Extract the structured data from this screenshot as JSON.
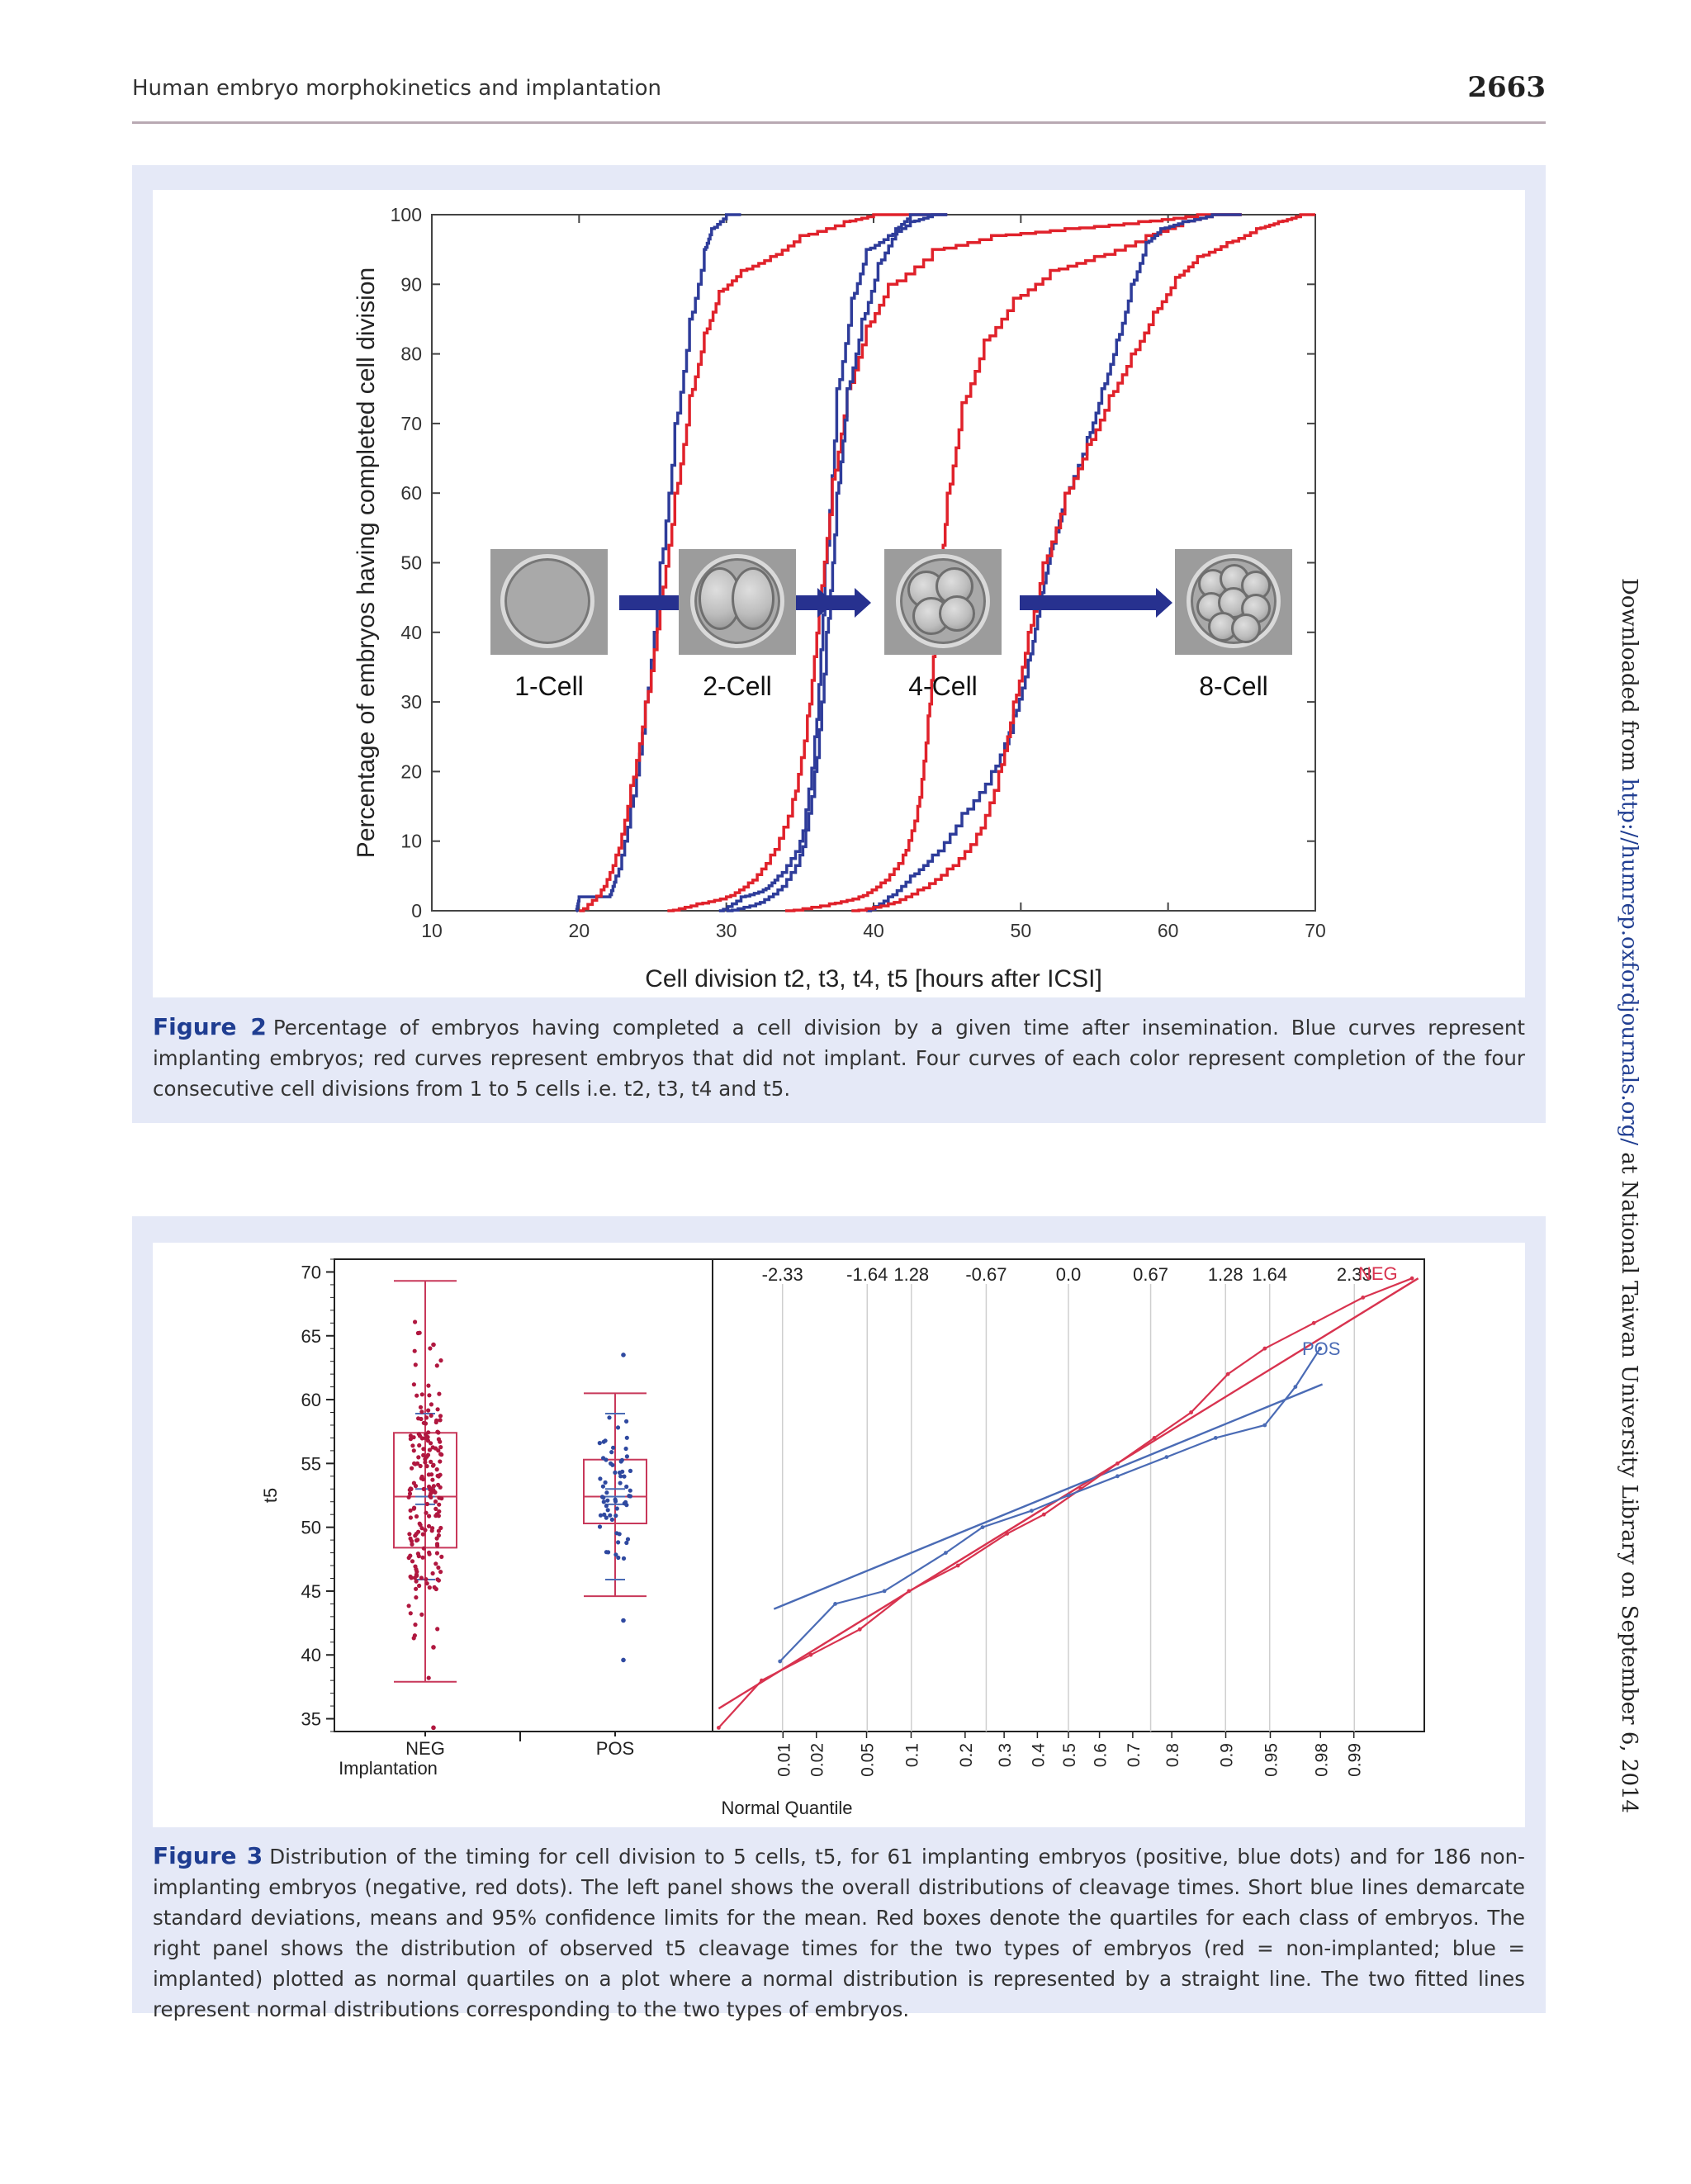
{
  "header": {
    "title": "Human embryo morphokinetics and implantation",
    "page_number": "2663"
  },
  "side_note": {
    "prefix": "Downloaded from ",
    "link": "http://humrep.oxfordjournals.org/",
    "suffix": " at National Taiwan University Library on September 6, 2014"
  },
  "figure2": {
    "label": "Figure 2",
    "caption": "Percentage of embryos having completed a cell division by a given time after insemination. Blue curves represent implanting embryos; red curves represent embryos that did not implant. Four curves of each color represent completion of the four consecutive cell divisions from 1 to 5 cells i.e. t2, t3, t4 and t5.",
    "embryo_labels": [
      "1-Cell",
      "2-Cell",
      "4-Cell",
      "8-Cell"
    ]
  },
  "figure3": {
    "label": "Figure 3",
    "caption": "Distribution of the timing for cell division to 5 cells, t5, for 61 implanting embryos (positive, blue dots) and for 186 non-implanting embryos (negative, red dots). The left panel shows the overall distributions of cleavage times. Short blue lines demarcate standard deviations, means and 95% confidence limits for the mean. Red boxes denote the quartiles for each class of embryos. The right panel shows the distribution of observed t5 cleavage times for the two types of embryos (red = non-implanted; blue = implanted) plotted as normal quartiles on a plot where a normal distribution is represented by a straight line. The two fitted lines represent normal distributions corresponding to the two types of embryos."
  },
  "colors": {
    "blue": "#2e3c9a",
    "red": "#e0222b",
    "box_red": "#c8385a",
    "qq_blue": "#4a6bb5",
    "qq_red": "#d8334f",
    "arrow": "#27318f"
  },
  "chart_data": [
    {
      "type": "line",
      "title": "",
      "xlabel": "Cell division t2, t3, t4, t5 [hours after ICSI]",
      "ylabel": "Percentage of embryos having completed cell division",
      "xlim": [
        10,
        70
      ],
      "ylim": [
        0,
        100
      ],
      "x_ticks": [
        "10",
        "20",
        "30",
        "40",
        "50",
        "60",
        "70"
      ],
      "y_ticks": [
        "0",
        "10",
        "20",
        "30",
        "40",
        "50",
        "60",
        "70",
        "80",
        "90",
        "100"
      ],
      "series": [
        {
          "name": "t2 implanted",
          "color": "blue",
          "points": [
            [
              19.8,
              0
            ],
            [
              20,
              2
            ],
            [
              22,
              2
            ],
            [
              22.5,
              5
            ],
            [
              23.5,
              15
            ],
            [
              24.5,
              30
            ],
            [
              25.5,
              50
            ],
            [
              26.5,
              70
            ],
            [
              27.5,
              85
            ],
            [
              28.5,
              95
            ],
            [
              29,
              98
            ],
            [
              30,
              100
            ],
            [
              31,
              100
            ]
          ]
        },
        {
          "name": "t2 not implanted",
          "color": "red",
          "points": [
            [
              20,
              0
            ],
            [
              21.5,
              3
            ],
            [
              22.5,
              8
            ],
            [
              23.5,
              18
            ],
            [
              24.5,
              30
            ],
            [
              25.5,
              45
            ],
            [
              26.5,
              60
            ],
            [
              27.5,
              74
            ],
            [
              28.5,
              83
            ],
            [
              29.5,
              89
            ],
            [
              31,
              92
            ],
            [
              33,
              94
            ],
            [
              35,
              97
            ],
            [
              38,
              99
            ],
            [
              40,
              100
            ],
            [
              45,
              100
            ]
          ]
        },
        {
          "name": "t3 implanted",
          "color": "blue",
          "points": [
            [
              29.5,
              0
            ],
            [
              31,
              2
            ],
            [
              32.5,
              3
            ],
            [
              33.5,
              5
            ],
            [
              35,
              10
            ],
            [
              36,
              25
            ],
            [
              36.7,
              50
            ],
            [
              37.5,
              75
            ],
            [
              38.5,
              88
            ],
            [
              39.5,
              95
            ],
            [
              41,
              97
            ],
            [
              42.5,
              99
            ],
            [
              44,
              100
            ],
            [
              45,
              100
            ]
          ]
        },
        {
          "name": "t3 not implanted",
          "color": "red",
          "points": [
            [
              26,
              0
            ],
            [
              28,
              1
            ],
            [
              30,
              2
            ],
            [
              31.5,
              4
            ],
            [
              33,
              8
            ],
            [
              34.5,
              16
            ],
            [
              35.5,
              28
            ],
            [
              36.3,
              45
            ],
            [
              37.2,
              62
            ],
            [
              38.2,
              75
            ],
            [
              39.5,
              84
            ],
            [
              41,
              90
            ],
            [
              44,
              95
            ],
            [
              48,
              97
            ],
            [
              53,
              98
            ],
            [
              58,
              99
            ],
            [
              62,
              100
            ],
            [
              65,
              100
            ]
          ]
        },
        {
          "name": "t4 implanted",
          "color": "blue",
          "points": [
            [
              30,
              0
            ],
            [
              32,
              1
            ],
            [
              33.5,
              3
            ],
            [
              35,
              8
            ],
            [
              36,
              20
            ],
            [
              36.8,
              40
            ],
            [
              37.5,
              60
            ],
            [
              38.2,
              75
            ],
            [
              39.2,
              85
            ],
            [
              40.3,
              93
            ],
            [
              41.5,
              98
            ],
            [
              42.5,
              100
            ],
            [
              45,
              100
            ]
          ]
        },
        {
          "name": "t4 not implanted",
          "color": "red",
          "points": [
            [
              34,
              0
            ],
            [
              37,
              1
            ],
            [
              39,
              2
            ],
            [
              40.5,
              4
            ],
            [
              42,
              8
            ],
            [
              43,
              15
            ],
            [
              43.7,
              28
            ],
            [
              44.3,
              45
            ],
            [
              45,
              60
            ],
            [
              46,
              73
            ],
            [
              47.5,
              82
            ],
            [
              49.5,
              88
            ],
            [
              52,
              92
            ],
            [
              55,
              94
            ],
            [
              58.5,
              97
            ],
            [
              61,
              99
            ],
            [
              63,
              100
            ],
            [
              65,
              100
            ]
          ]
        },
        {
          "name": "t5 implanted",
          "color": "blue",
          "points": [
            [
              39.5,
              0
            ],
            [
              41,
              2
            ],
            [
              42.5,
              5
            ],
            [
              44,
              8
            ],
            [
              46,
              14
            ],
            [
              48,
              20
            ],
            [
              49.5,
              28
            ],
            [
              50.5,
              36
            ],
            [
              51.3,
              45
            ],
            [
              52,
              52
            ],
            [
              53,
              60
            ],
            [
              54.5,
              68
            ],
            [
              55.5,
              75
            ],
            [
              56.5,
              82
            ],
            [
              57.5,
              90
            ],
            [
              58.5,
              96
            ],
            [
              59.5,
              98
            ],
            [
              61,
              99
            ],
            [
              63,
              100
            ],
            [
              65,
              100
            ]
          ]
        },
        {
          "name": "t5 not implanted",
          "color": "red",
          "points": [
            [
              38.5,
              0
            ],
            [
              41,
              1
            ],
            [
              43,
              3
            ],
            [
              45,
              6
            ],
            [
              47,
              11
            ],
            [
              48.5,
              20
            ],
            [
              49.5,
              30
            ],
            [
              50.5,
              40
            ],
            [
              51.5,
              50
            ],
            [
              53,
              60
            ],
            [
              54.5,
              67
            ],
            [
              56,
              74
            ],
            [
              57.5,
              80
            ],
            [
              59,
              86
            ],
            [
              60.5,
              91
            ],
            [
              62,
              94
            ],
            [
              64,
              96
            ],
            [
              66,
              98
            ],
            [
              67.5,
              99
            ],
            [
              69,
              100
            ],
            [
              70,
              100
            ]
          ]
        }
      ]
    },
    {
      "type": "scatter",
      "title": "",
      "xlabel": "Implantation",
      "ylabel": "t5",
      "categories": [
        "NEG",
        "POS"
      ],
      "ylim": [
        34,
        71
      ],
      "y_ticks": [
        "35",
        "40",
        "45",
        "50",
        "55",
        "60",
        "65",
        "70"
      ],
      "boxes": [
        {
          "name": "NEG",
          "q1": 48.4,
          "median": 52.4,
          "q3": 57.4,
          "whisker_low": 37.9,
          "whisker_high": 69.3
        },
        {
          "name": "POS",
          "q1": 50.3,
          "median": 52.4,
          "q3": 55.3,
          "whisker_low": 44.6,
          "whisker_high": 60.5
        }
      ],
      "outliers": {
        "NEG": [
          34.3,
          40.6,
          64.3
        ],
        "POS": [
          39.6,
          42.7,
          63.5
        ]
      }
    },
    {
      "type": "line",
      "title": "",
      "xlabel": "Normal Quantile",
      "xlim": [
        -2.9,
        2.9
      ],
      "top_ticks": [
        "-2.33",
        "-1.64",
        "1.28",
        "-0.67",
        "0.0",
        "0.67",
        "1.28",
        "1.64",
        "2.33"
      ],
      "bottom_ticks": [
        "0.01",
        "0.02",
        "0.05",
        "0.1",
        "0.2",
        "0.3",
        "0.4",
        "0.5",
        "0.6",
        "0.7",
        "0.8",
        "0.9",
        "0.95",
        "0.98",
        "0.99"
      ],
      "legend": [
        "NEG",
        "POS"
      ],
      "series": [
        {
          "name": "NEG fit",
          "points": [
            [
              -2.85,
              35.8
            ],
            [
              2.85,
              69.5
            ]
          ]
        },
        {
          "name": "POS fit",
          "points": [
            [
              -2.4,
              43.6
            ],
            [
              2.07,
              61.2
            ]
          ]
        },
        {
          "name": "NEG observed",
          "points": [
            [
              -2.85,
              34.3
            ],
            [
              -2.5,
              38
            ],
            [
              -2.1,
              40
            ],
            [
              -1.7,
              42
            ],
            [
              -1.3,
              45
            ],
            [
              -0.9,
              47
            ],
            [
              -0.5,
              49.5
            ],
            [
              -0.2,
              51
            ],
            [
              0.1,
              53
            ],
            [
              0.4,
              55
            ],
            [
              0.7,
              57
            ],
            [
              1.0,
              59
            ],
            [
              1.3,
              62
            ],
            [
              1.6,
              64
            ],
            [
              2.0,
              66
            ],
            [
              2.4,
              68
            ],
            [
              2.8,
              69.5
            ]
          ]
        },
        {
          "name": "POS observed",
          "points": [
            [
              -2.35,
              39.5
            ],
            [
              -1.9,
              44
            ],
            [
              -1.5,
              45
            ],
            [
              -1.0,
              48
            ],
            [
              -0.7,
              50
            ],
            [
              -0.3,
              51.3
            ],
            [
              0,
              52.5
            ],
            [
              0.4,
              54
            ],
            [
              0.8,
              55.5
            ],
            [
              1.2,
              57
            ],
            [
              1.6,
              58
            ],
            [
              1.85,
              61
            ],
            [
              2.05,
              64
            ]
          ]
        }
      ]
    }
  ]
}
